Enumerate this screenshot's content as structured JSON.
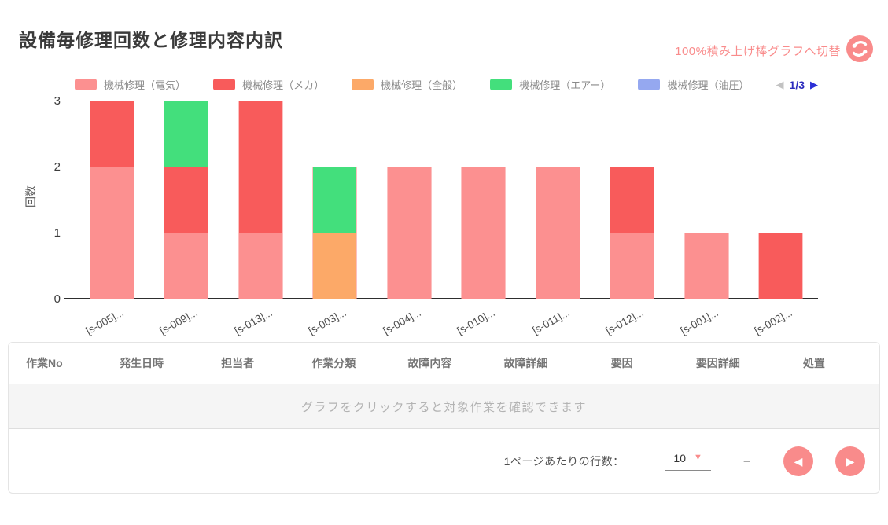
{
  "header": {
    "title": "設備毎修理回数と修理内容内訳",
    "switch_label": "100%積み上げ棒グラフへ切替"
  },
  "colors": {
    "accent_pink": "#f98b8b",
    "legend_pager_blue": "#2b2fd6",
    "series_denki": "#fc9090",
    "series_meka": "#f85b5b",
    "series_zenpan": "#fca968",
    "series_air": "#43df7c",
    "series_yuatsu": "#95a8f0"
  },
  "chart_data": {
    "type": "bar",
    "stacked": true,
    "title": "設備毎修理回数と修理内容内訳",
    "xlabel": "",
    "ylabel": "回数",
    "ylim": [
      0,
      3
    ],
    "yticks": [
      0,
      1,
      2,
      3
    ],
    "grid": true,
    "legend_position": "top",
    "categories": [
      "[s-005]...",
      "[s-009]...",
      "[s-013]...",
      "[s-003]...",
      "[s-004]...",
      "[s-010]...",
      "[s-011]...",
      "[s-012]...",
      "[s-001]...",
      "[s-002]..."
    ],
    "series": [
      {
        "name": "機械修理（電気）",
        "color": "#fc9090",
        "values": [
          2,
          1,
          1,
          0,
          2,
          2,
          2,
          1,
          1,
          0
        ]
      },
      {
        "name": "機械修理（メカ）",
        "color": "#f85b5b",
        "values": [
          1,
          1,
          2,
          0,
          0,
          0,
          0,
          1,
          0,
          1
        ]
      },
      {
        "name": "機械修理（全般）",
        "color": "#fca968",
        "values": [
          0,
          0,
          0,
          1,
          0,
          0,
          0,
          0,
          0,
          0
        ]
      },
      {
        "name": "機械修理（エアー）",
        "color": "#43df7c",
        "values": [
          0,
          1,
          0,
          1,
          0,
          0,
          0,
          0,
          0,
          0
        ]
      },
      {
        "name": "機械修理（油圧）",
        "color": "#95a8f0",
        "values": [
          0,
          0,
          0,
          0,
          0,
          0,
          0,
          0,
          0,
          0
        ]
      }
    ]
  },
  "legend_pager": {
    "current": "1/3",
    "prev_icon": "◀",
    "next_icon": "▶"
  },
  "table": {
    "columns": [
      "作業No",
      "発生日時",
      "担当者",
      "作業分類",
      "故障内容",
      "故障詳細",
      "要因",
      "要因詳細",
      "処置"
    ],
    "empty_message": "グラフをクリックすると対象作業を確認できます"
  },
  "footer": {
    "rows_per_page_label": "1ページあたりの行数：",
    "rows_per_page_value": "10",
    "caret_icon": "▼",
    "range_label": "–",
    "prev_icon": "◀",
    "next_icon": "▶"
  }
}
